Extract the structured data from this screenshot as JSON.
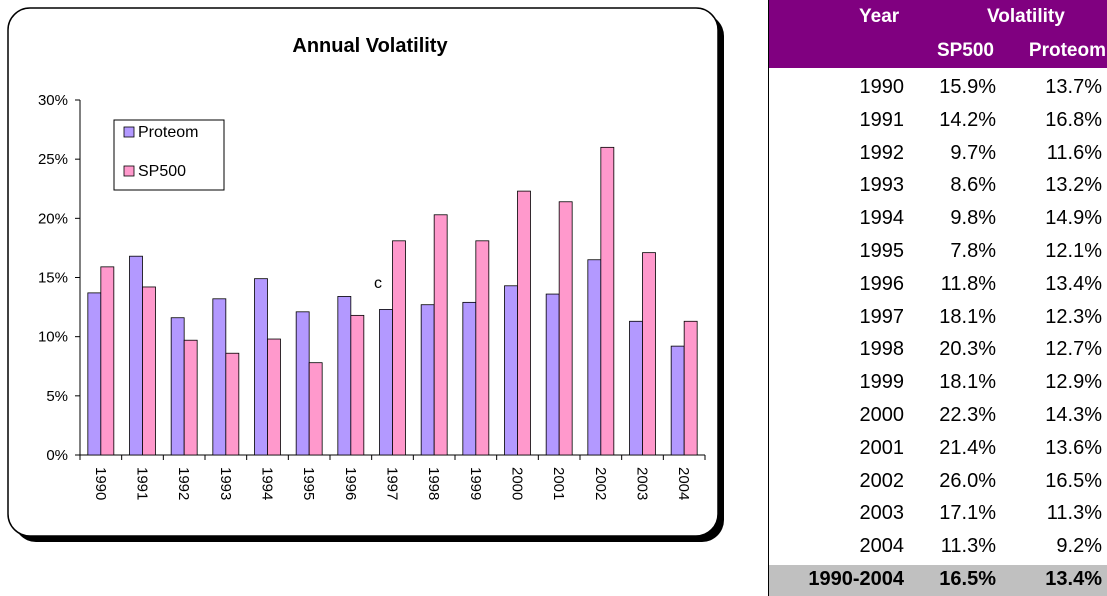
{
  "chart_data": {
    "type": "bar",
    "title": "Annual Volatility",
    "annotation": "c",
    "categories": [
      "1990",
      "1991",
      "1992",
      "1993",
      "1994",
      "1995",
      "1996",
      "1997",
      "1998",
      "1999",
      "2000",
      "2001",
      "2002",
      "2003",
      "2004"
    ],
    "series": [
      {
        "name": "Proteom",
        "color": "#b399ff",
        "values": [
          13.7,
          16.8,
          11.6,
          13.2,
          14.9,
          12.1,
          13.4,
          12.3,
          12.7,
          12.9,
          14.3,
          13.6,
          16.5,
          11.3,
          9.2
        ]
      },
      {
        "name": "SP500",
        "color": "#ff99cc",
        "values": [
          15.9,
          14.2,
          9.7,
          8.6,
          9.8,
          7.8,
          11.8,
          18.1,
          20.3,
          18.1,
          22.3,
          21.4,
          26.0,
          17.1,
          11.3
        ]
      }
    ],
    "ylim": [
      0,
      30
    ],
    "yticks": [
      {
        "value": 0,
        "label": "0%"
      },
      {
        "value": 5,
        "label": "5%"
      },
      {
        "value": 10,
        "label": "10%"
      },
      {
        "value": 15,
        "label": "15%"
      },
      {
        "value": 20,
        "label": "20%"
      },
      {
        "value": 25,
        "label": "25%"
      },
      {
        "value": 30,
        "label": "30%"
      }
    ],
    "grid": false
  },
  "table": {
    "header": [
      "Year",
      "Volatility"
    ],
    "subheader": [
      "SP500",
      "Proteom"
    ],
    "rows": [
      [
        "1990",
        "15.9%",
        "13.7%"
      ],
      [
        "1991",
        "14.2%",
        "16.8%"
      ],
      [
        "1992",
        "9.7%",
        "11.6%"
      ],
      [
        "1993",
        "8.6%",
        "13.2%"
      ],
      [
        "1994",
        "9.8%",
        "14.9%"
      ],
      [
        "1995",
        "7.8%",
        "12.1%"
      ],
      [
        "1996",
        "11.8%",
        "13.4%"
      ],
      [
        "1997",
        "18.1%",
        "12.3%"
      ],
      [
        "1998",
        "20.3%",
        "12.7%"
      ],
      [
        "1999",
        "18.1%",
        "12.9%"
      ],
      [
        "2000",
        "22.3%",
        "14.3%"
      ],
      [
        "2001",
        "21.4%",
        "13.6%"
      ],
      [
        "2002",
        "26.0%",
        "16.5%"
      ],
      [
        "2003",
        "17.1%",
        "11.3%"
      ],
      [
        "2004",
        "11.3%",
        "9.2%"
      ]
    ],
    "footer": [
      "1990-2004",
      "16.5%",
      "13.4%"
    ]
  }
}
